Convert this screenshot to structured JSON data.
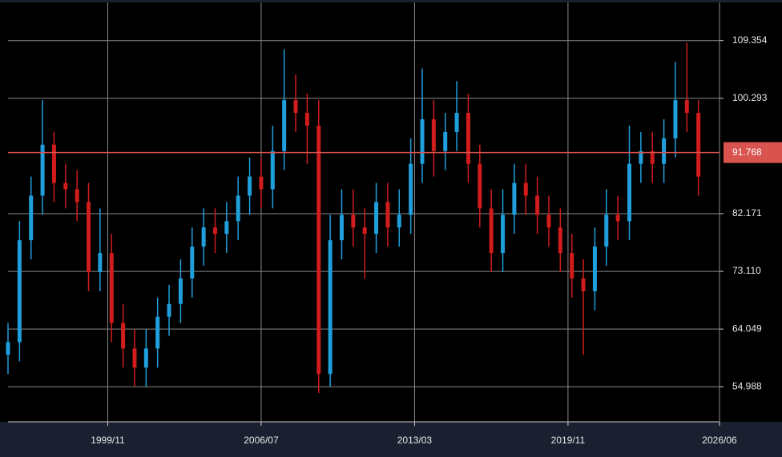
{
  "chart_data": {
    "type": "candlestick",
    "x": [
      "1995/07",
      "1996/01",
      "1996/07",
      "1997/01",
      "1997/07",
      "1998/01",
      "1998/07",
      "1999/01",
      "1999/07",
      "2000/01",
      "2000/07",
      "2001/01",
      "2001/07",
      "2002/01",
      "2002/07",
      "2003/01",
      "2003/07",
      "2004/01",
      "2004/07",
      "2005/01",
      "2005/07",
      "2006/01",
      "2006/07",
      "2007/01",
      "2007/07",
      "2008/01",
      "2008/07",
      "2009/01",
      "2009/07",
      "2010/01",
      "2010/07",
      "2011/01",
      "2011/07",
      "2012/01",
      "2012/07",
      "2013/01",
      "2013/07",
      "2014/01",
      "2014/07",
      "2015/01",
      "2015/07",
      "2016/01",
      "2016/07",
      "2017/01",
      "2017/07",
      "2018/01",
      "2018/07",
      "2019/01",
      "2019/07",
      "2020/01",
      "2020/07",
      "2021/01",
      "2021/07",
      "2022/01",
      "2022/07",
      "2023/01",
      "2023/07",
      "2024/01",
      "2024/07",
      "2025/01",
      "2025/07"
    ],
    "open": [
      60,
      62,
      78,
      85,
      93,
      87,
      86,
      84,
      73,
      76,
      65,
      61,
      58,
      61,
      66,
      68,
      72,
      77,
      80,
      79,
      81,
      85,
      88,
      86,
      92,
      100,
      98,
      96,
      57,
      78,
      82,
      80,
      79,
      84,
      80,
      82,
      90,
      97,
      92,
      95,
      98,
      90,
      83,
      76,
      82,
      87,
      85,
      82,
      80,
      76,
      72,
      70,
      77,
      82,
      81,
      90,
      92,
      90,
      94,
      100,
      98
    ],
    "high": [
      65,
      81,
      88,
      100,
      95,
      90,
      89,
      87,
      83,
      79,
      68,
      64,
      64,
      69,
      71,
      75,
      80,
      83,
      83,
      84,
      88,
      91,
      91,
      96,
      108,
      104,
      101,
      100,
      82,
      86,
      86,
      83,
      87,
      87,
      86,
      94,
      105,
      100,
      98,
      103,
      101,
      93,
      86,
      86,
      90,
      90,
      88,
      85,
      83,
      79,
      75,
      80,
      86,
      85,
      96,
      95,
      95,
      97,
      106,
      109,
      100
    ],
    "low": [
      57,
      59,
      75,
      82,
      84,
      83,
      81,
      70,
      70,
      62,
      58,
      55,
      55,
      58,
      63,
      65,
      69,
      74,
      76,
      76,
      78,
      82,
      83,
      83,
      89,
      95,
      90,
      54,
      55,
      75,
      77,
      72,
      76,
      77,
      77,
      79,
      87,
      88,
      89,
      92,
      87,
      80,
      73,
      73,
      79,
      82,
      79,
      77,
      73,
      69,
      60,
      67,
      74,
      78,
      78,
      87,
      87,
      87,
      91,
      95,
      85
    ],
    "close": [
      62,
      78,
      85,
      93,
      87,
      86,
      84,
      73,
      76,
      65,
      61,
      58,
      61,
      66,
      68,
      72,
      77,
      80,
      79,
      81,
      85,
      88,
      86,
      92,
      100,
      98,
      96,
      57,
      78,
      82,
      80,
      79,
      84,
      80,
      82,
      90,
      97,
      92,
      95,
      98,
      90,
      83,
      76,
      82,
      87,
      85,
      82,
      80,
      76,
      72,
      70,
      77,
      82,
      81,
      90,
      92,
      90,
      94,
      100,
      98,
      88
    ],
    "up_color": "#1f9fdc",
    "down_color": "#d01c1c",
    "xlim": [
      "1995/07",
      "2026/06"
    ],
    "xticks": [
      "1999/11",
      "2006/07",
      "2013/03",
      "2019/11",
      "2026/06"
    ],
    "ylim": [
      49.49,
      115.35
    ],
    "yticks": [
      54.988,
      64.049,
      {
        "value": 73.11,
        "label": "73.110"
      },
      82.171,
      100.293,
      109.354
    ],
    "last_price": 91.768,
    "last_price_color": "#d9534f",
    "grid": true
  }
}
